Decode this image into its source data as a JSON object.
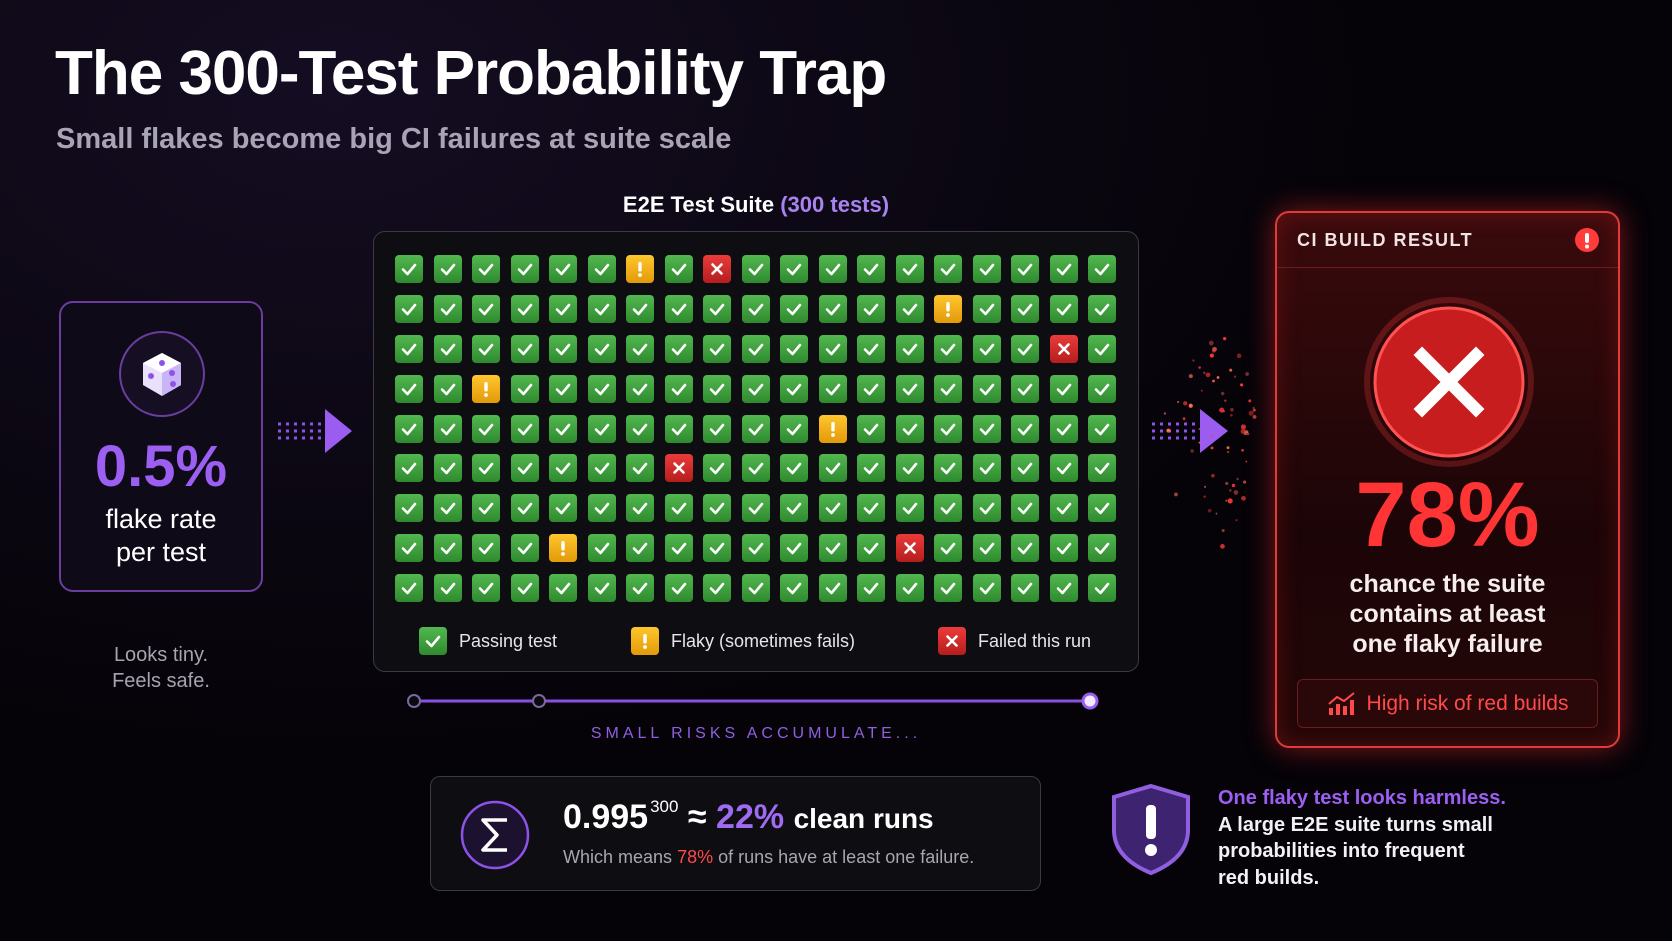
{
  "header": {
    "title": "The 300-Test Probability Trap",
    "subtitle": "Small flakes become big CI failures at suite scale"
  },
  "flake_card": {
    "rate": "0.5%",
    "label_lines": [
      "flake rate",
      "per test"
    ],
    "note_lines": [
      "Looks tiny.",
      "Feels safe."
    ]
  },
  "suite": {
    "title": "E2E Test Suite",
    "count": "(300 tests)",
    "legend": [
      "Passing test",
      "Flaky (sometimes fails)",
      "Failed this run"
    ]
  },
  "progress": {
    "label": "SMALL RISKS ACCUMULATE..."
  },
  "formula": {
    "base": "0.995",
    "exponent": "300",
    "approx": "≈",
    "clean": "22%",
    "clean_label": "clean runs",
    "note_before": "Which means",
    "note_value": "78%",
    "note_after": "of runs have at least one failure."
  },
  "ci": {
    "header": "CI BUILD RESULT",
    "chance": "78%",
    "lines": [
      "chance the suite",
      "contains at least",
      "one flaky failure"
    ],
    "badge": "High risk of red builds"
  },
  "callout": {
    "lead": "One flaky test looks harmless.",
    "lines": [
      "A large E2E suite turns small",
      "probabilities into frequent",
      "red builds."
    ]
  }
}
